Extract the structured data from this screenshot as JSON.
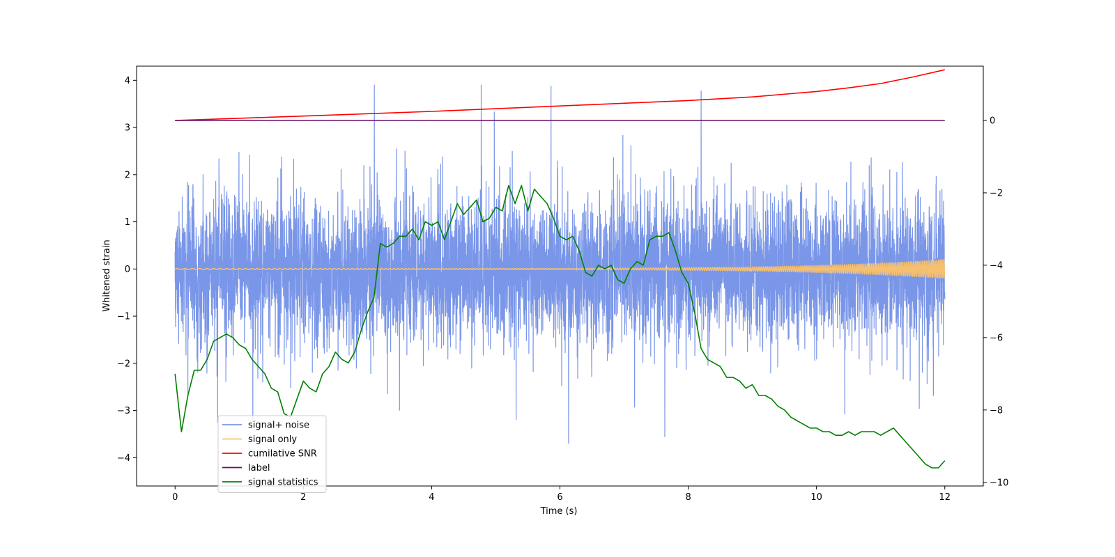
{
  "chart_data": {
    "type": "line",
    "title": "",
    "xlabel": "Time (s)",
    "ylabel": "Whitened strain",
    "y2label": "",
    "xlim": [
      -0.6,
      12.6
    ],
    "ylim": [
      -4.6,
      4.3
    ],
    "y2lim": [
      -10.1,
      1.5
    ],
    "xticks": [
      0,
      2,
      4,
      6,
      8,
      10,
      12
    ],
    "yticks": [
      -4,
      -3,
      -2,
      -1,
      0,
      1,
      2,
      3,
      4
    ],
    "y2ticks": [
      -10,
      -8,
      -6,
      -4,
      -2,
      0
    ],
    "legend": "lower-left",
    "grid": false,
    "series": [
      {
        "name": "signal+ noise",
        "axis": "left",
        "color": "#7a96e8",
        "kind": "noise",
        "x_start": 0,
        "x_end": 12,
        "sigma": 1.0,
        "approx_range": [
          -4.2,
          3.9
        ]
      },
      {
        "name": "signal only",
        "axis": "left",
        "color": "#f5c070",
        "kind": "chirp",
        "x_start": 0,
        "x_end": 12,
        "amplitude_start": 0.01,
        "amplitude_end": 0.2
      },
      {
        "name": "cumilative SNR",
        "axis": "right",
        "color": "#ff0000",
        "x": [
          0,
          2,
          4,
          6,
          8,
          9,
          10,
          10.5,
          11,
          11.5,
          12
        ],
        "y": [
          0.0,
          0.12,
          0.25,
          0.4,
          0.55,
          0.65,
          0.8,
          0.9,
          1.02,
          1.2,
          1.4
        ]
      },
      {
        "name": "label",
        "axis": "right",
        "color": "#6a0d6a",
        "x": [
          0,
          12
        ],
        "y": [
          0,
          0
        ]
      },
      {
        "name": "signal statistics",
        "axis": "right",
        "color": "#008000",
        "x": [
          0.0,
          0.1,
          0.2,
          0.3,
          0.4,
          0.5,
          0.6,
          0.7,
          0.8,
          0.9,
          1.0,
          1.1,
          1.2,
          1.3,
          1.4,
          1.5,
          1.6,
          1.7,
          1.8,
          1.9,
          2.0,
          2.1,
          2.2,
          2.3,
          2.4,
          2.5,
          2.6,
          2.7,
          2.8,
          2.9,
          3.0,
          3.1,
          3.2,
          3.3,
          3.4,
          3.5,
          3.6,
          3.7,
          3.8,
          3.9,
          4.0,
          4.1,
          4.2,
          4.3,
          4.4,
          4.5,
          4.6,
          4.7,
          4.8,
          4.9,
          5.0,
          5.1,
          5.2,
          5.3,
          5.4,
          5.5,
          5.6,
          5.7,
          5.8,
          5.9,
          6.0,
          6.1,
          6.2,
          6.3,
          6.4,
          6.5,
          6.6,
          6.7,
          6.8,
          6.9,
          7.0,
          7.1,
          7.2,
          7.3,
          7.4,
          7.5,
          7.6,
          7.7,
          7.8,
          7.9,
          8.0,
          8.1,
          8.2,
          8.3,
          8.4,
          8.5,
          8.6,
          8.7,
          8.8,
          8.9,
          9.0,
          9.1,
          9.2,
          9.3,
          9.4,
          9.5,
          9.6,
          9.7,
          9.8,
          9.9,
          10.0,
          10.1,
          10.2,
          10.3,
          10.4,
          10.5,
          10.6,
          10.7,
          10.8,
          10.9,
          11.0,
          11.1,
          11.2,
          11.3,
          11.4,
          11.5,
          11.6,
          11.7,
          11.8,
          11.9,
          12.0
        ],
        "y": [
          -7.0,
          -8.6,
          -7.6,
          -6.9,
          -6.9,
          -6.6,
          -6.1,
          -6.0,
          -5.9,
          -6.0,
          -6.2,
          -6.3,
          -6.6,
          -6.8,
          -7.0,
          -7.4,
          -7.5,
          -8.1,
          -8.2,
          -7.7,
          -7.2,
          -7.4,
          -7.5,
          -7.0,
          -6.8,
          -6.4,
          -6.6,
          -6.7,
          -6.4,
          -5.8,
          -5.3,
          -4.9,
          -3.4,
          -3.5,
          -3.4,
          -3.2,
          -3.2,
          -3.0,
          -3.3,
          -2.8,
          -2.9,
          -2.8,
          -3.3,
          -2.8,
          -2.3,
          -2.6,
          -2.4,
          -2.2,
          -2.8,
          -2.7,
          -2.4,
          -2.5,
          -1.8,
          -2.3,
          -1.8,
          -2.5,
          -1.9,
          -2.1,
          -2.3,
          -2.7,
          -3.2,
          -3.3,
          -3.2,
          -3.6,
          -4.2,
          -4.3,
          -4.0,
          -4.1,
          -4.0,
          -4.4,
          -4.5,
          -4.1,
          -3.9,
          -4.0,
          -3.3,
          -3.2,
          -3.2,
          -3.1,
          -3.6,
          -4.2,
          -4.5,
          -5.3,
          -6.3,
          -6.6,
          -6.7,
          -6.8,
          -7.1,
          -7.1,
          -7.2,
          -7.4,
          -7.3,
          -7.6,
          -7.6,
          -7.7,
          -7.9,
          -8.0,
          -8.2,
          -8.3,
          -8.4,
          -8.5,
          -8.5,
          -8.6,
          -8.6,
          -8.7,
          -8.7,
          -8.6,
          -8.7,
          -8.6,
          -8.6,
          -8.6,
          -8.7,
          -8.6,
          -8.5,
          -8.7,
          -8.9,
          -9.1,
          -9.3,
          -9.5,
          -9.6,
          -9.6,
          -9.4
        ]
      }
    ]
  }
}
